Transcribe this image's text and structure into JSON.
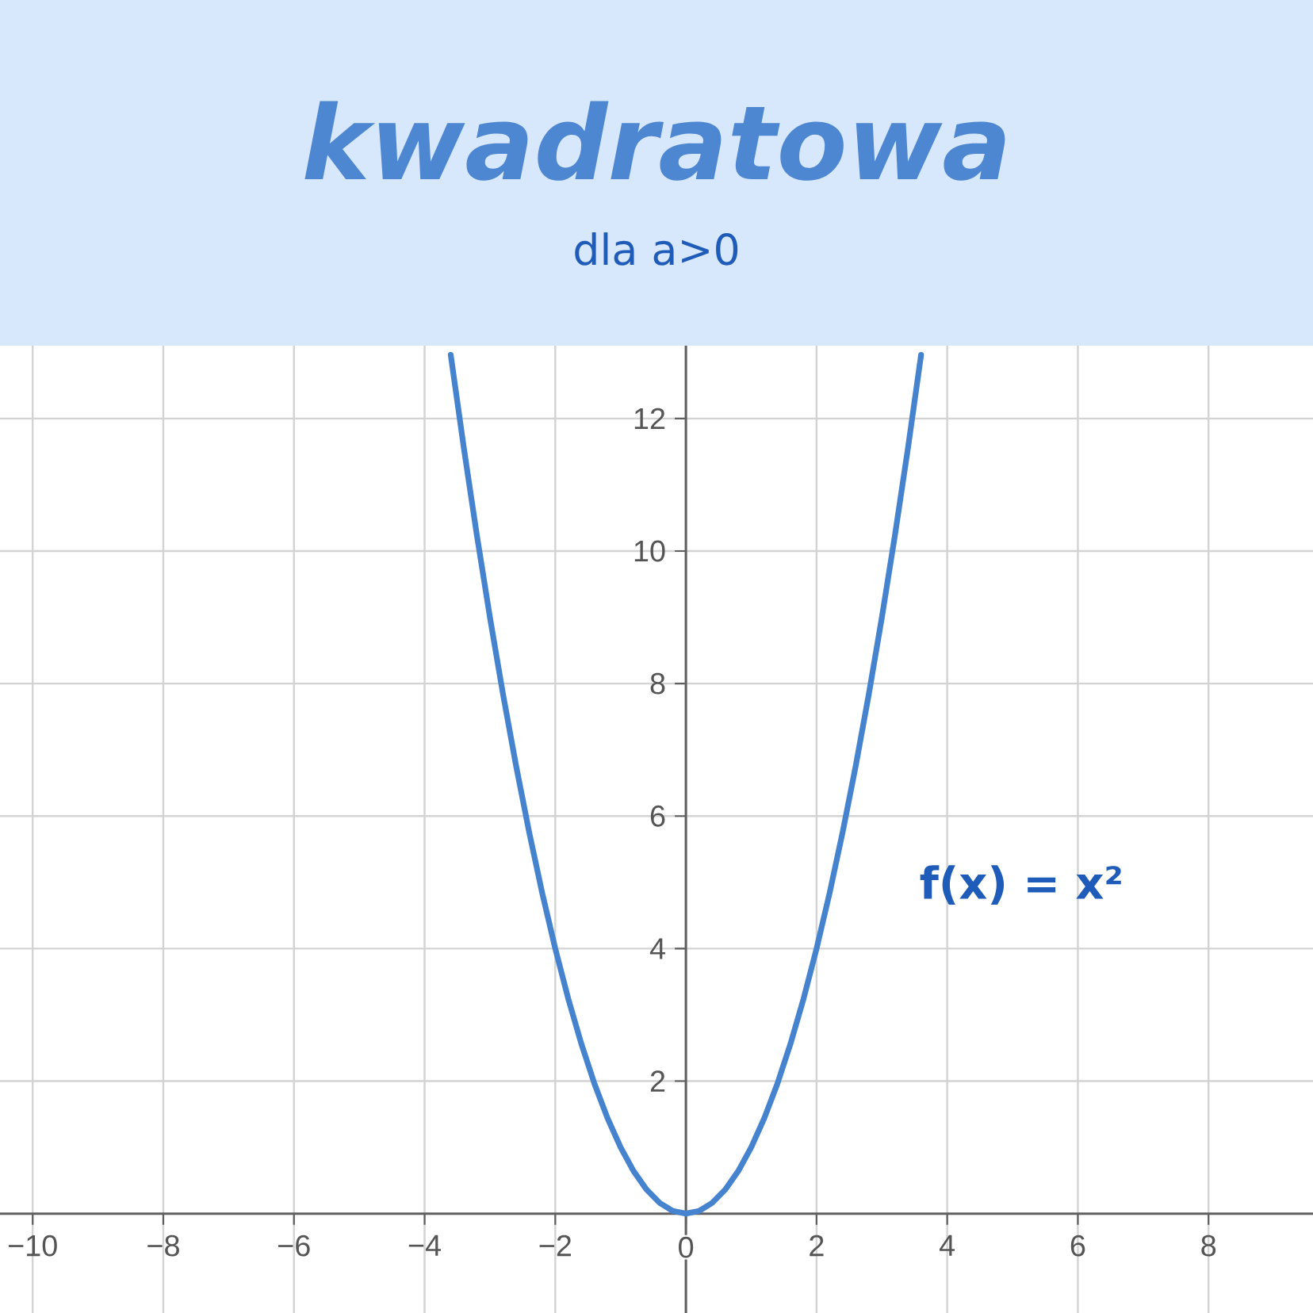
{
  "chart_data": {
    "type": "line",
    "title": "kwadratowa",
    "subtitle": "dla a>0",
    "x": [
      -3.6,
      -3.4,
      -3.2,
      -3.0,
      -2.8,
      -2.6,
      -2.4,
      -2.2,
      -2.0,
      -1.8,
      -1.6,
      -1.4,
      -1.2,
      -1.0,
      -0.8,
      -0.6,
      -0.4,
      -0.2,
      0,
      0.2,
      0.4,
      0.6,
      0.8,
      1.0,
      1.2,
      1.4,
      1.6,
      1.8,
      2.0,
      2.2,
      2.4,
      2.6,
      2.8,
      3.0,
      3.2,
      3.4,
      3.6
    ],
    "series": [
      {
        "name": "f(x) = x²",
        "color": "#4683cf",
        "values": [
          12.96,
          11.56,
          10.24,
          9,
          7.84,
          6.76,
          5.76,
          4.84,
          4,
          3.24,
          2.56,
          1.96,
          1.44,
          1,
          0.64,
          0.36,
          0.16,
          0.04,
          0,
          0.04,
          0.16,
          0.36,
          0.64,
          1,
          1.44,
          1.96,
          2.56,
          3.24,
          4,
          4.84,
          5.76,
          6.76,
          7.84,
          9,
          10.24,
          11.56,
          12.96
        ]
      }
    ],
    "xlim": [
      -10.5,
      9.6
    ],
    "ylim": [
      -1.5,
      13.1
    ],
    "xticks": [
      {
        "value": -10,
        "label": "−10"
      },
      {
        "value": -8,
        "label": "−8"
      },
      {
        "value": -6,
        "label": "−6"
      },
      {
        "value": -4,
        "label": "−4"
      },
      {
        "value": -2,
        "label": "−2"
      },
      0,
      2,
      4,
      6,
      8
    ],
    "yticks": [
      2,
      4,
      6,
      8,
      10,
      12
    ],
    "grid": true,
    "marker": "none",
    "line_style": "solid"
  }
}
